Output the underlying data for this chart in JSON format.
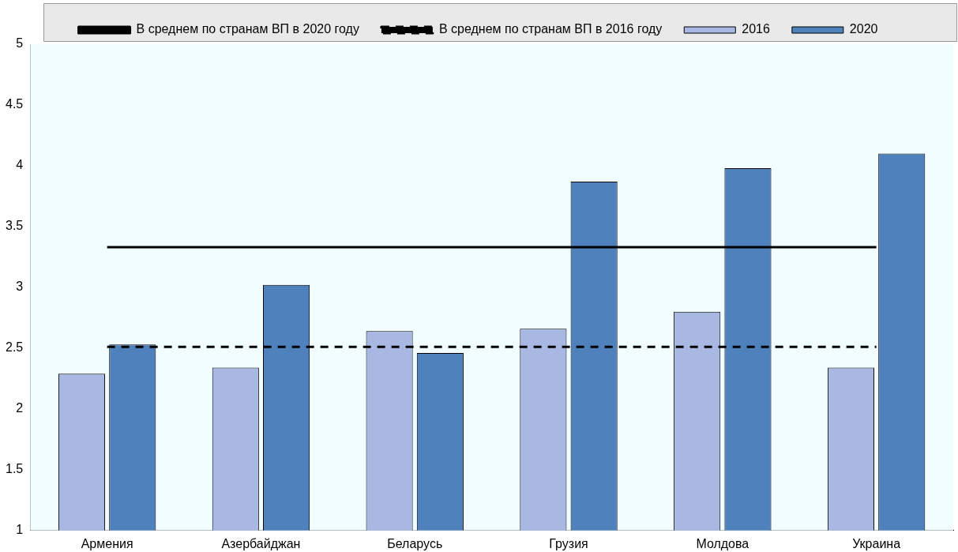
{
  "chart_data": {
    "type": "bar",
    "categories": [
      "Армения",
      "Азербайджан",
      "Беларусь",
      "Грузия",
      "Молдова",
      "Украина"
    ],
    "series": [
      {
        "name": "2016",
        "color": "#a9b8e2",
        "values": [
          2.29,
          2.34,
          2.64,
          2.66,
          2.8,
          2.34
        ]
      },
      {
        "name": "2020",
        "color": "#4f81bd",
        "values": [
          2.53,
          3.02,
          2.46,
          3.87,
          3.98,
          4.1
        ]
      },
      {
        "name": "В среднем по странам ВП в 2020 году",
        "type": "line",
        "color": "#000000",
        "line_style": "solid",
        "values": [
          3.33,
          3.33,
          3.33,
          3.33,
          3.33,
          3.33
        ]
      },
      {
        "name": "В среднем по странам ВП в 2016 году",
        "type": "line",
        "color": "#000000",
        "line_style": "dashed",
        "values": [
          2.51,
          2.51,
          2.51,
          2.51,
          2.51,
          2.51
        ]
      }
    ],
    "ylim": [
      1,
      5
    ],
    "yticks": [
      1,
      1.5,
      2,
      2.5,
      3,
      3.5,
      4,
      4.5,
      5
    ],
    "grid": false,
    "legend": "top",
    "marker": "none"
  }
}
